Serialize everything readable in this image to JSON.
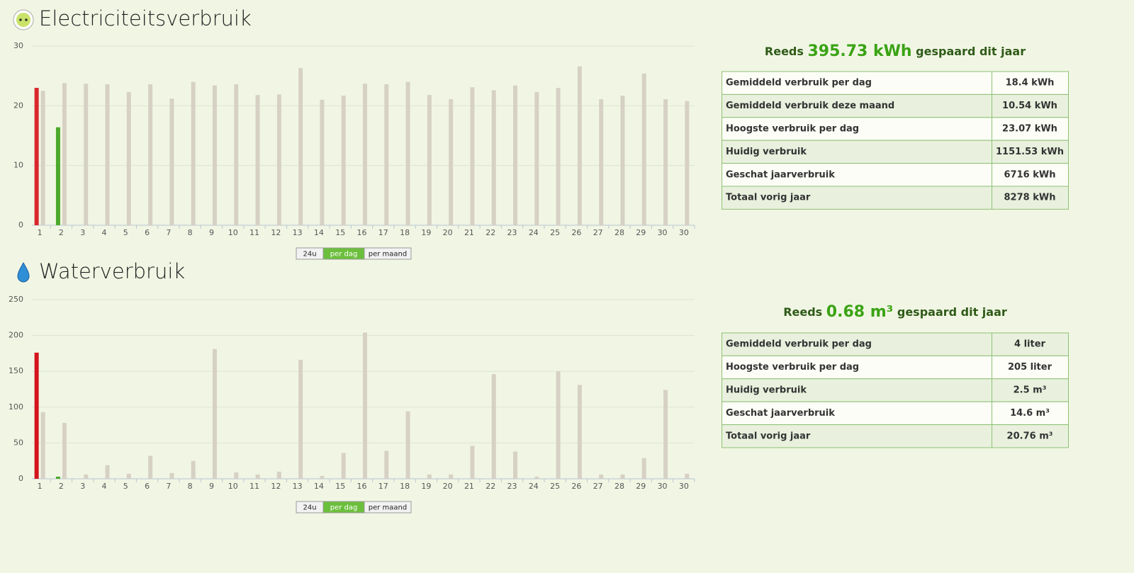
{
  "chart_data": [
    {
      "type": "bar",
      "title": "Electriciteitsverbruik",
      "categories": [
        "1",
        "2",
        "3",
        "4",
        "5",
        "6",
        "7",
        "8",
        "9",
        "10",
        "11",
        "12",
        "13",
        "14",
        "15",
        "16",
        "17",
        "18",
        "19",
        "20",
        "21",
        "22",
        "23",
        "24",
        "25",
        "26",
        "27",
        "28",
        "29",
        "30",
        "30"
      ],
      "series": [
        {
          "values": [
            23.0,
            16.4,
            null,
            null,
            null,
            null,
            null,
            null,
            null,
            null,
            null,
            null,
            null,
            null,
            null,
            null,
            null,
            null,
            null,
            null,
            null,
            null,
            null,
            null,
            null,
            null,
            null,
            null,
            null,
            null,
            null
          ],
          "colors": [
            "#d9272e",
            "#4caa2b",
            null,
            null,
            null,
            null,
            null,
            null,
            null,
            null,
            null,
            null,
            null,
            null,
            null,
            null,
            null,
            null,
            null,
            null,
            null,
            null,
            null,
            null,
            null,
            null,
            null,
            null,
            null,
            null,
            null
          ]
        },
        {
          "color": "#d6d1c4",
          "values": [
            22.5,
            23.8,
            23.7,
            23.6,
            22.3,
            23.6,
            21.2,
            24.0,
            23.4,
            23.6,
            21.8,
            21.9,
            26.3,
            21.0,
            21.7,
            23.7,
            23.6,
            24.0,
            21.8,
            21.1,
            23.1,
            22.6,
            23.4,
            22.3,
            23.0,
            26.6,
            21.1,
            21.7,
            25.4,
            21.1,
            20.8
          ]
        }
      ],
      "ylim": [
        0,
        30
      ],
      "yticks": [
        0,
        10,
        20,
        30
      ],
      "grid": true
    },
    {
      "type": "bar",
      "title": "Waterverbruik",
      "categories": [
        "1",
        "2",
        "3",
        "4",
        "5",
        "6",
        "7",
        "8",
        "9",
        "10",
        "11",
        "12",
        "13",
        "14",
        "15",
        "16",
        "17",
        "18",
        "19",
        "20",
        "21",
        "22",
        "23",
        "24",
        "25",
        "26",
        "27",
        "28",
        "29",
        "30",
        "30"
      ],
      "series": [
        {
          "values": [
            176,
            3,
            null,
            null,
            null,
            null,
            null,
            null,
            null,
            null,
            null,
            null,
            null,
            null,
            null,
            null,
            null,
            null,
            null,
            null,
            null,
            null,
            null,
            null,
            null,
            null,
            null,
            null,
            null,
            null,
            null
          ],
          "colors": [
            "#d4141c",
            "#4caa2b",
            null,
            null,
            null,
            null,
            null,
            null,
            null,
            null,
            null,
            null,
            null,
            null,
            null,
            null,
            null,
            null,
            null,
            null,
            null,
            null,
            null,
            null,
            null,
            null,
            null,
            null,
            null,
            null,
            null
          ]
        },
        {
          "color": "#d6d1c4",
          "values": [
            93,
            78,
            6,
            19,
            7,
            32,
            8,
            25,
            181,
            9,
            6,
            10,
            166,
            4,
            36,
            204,
            39,
            94,
            6,
            6,
            46,
            146,
            38,
            3,
            150,
            131,
            6,
            6,
            29,
            124,
            7
          ]
        }
      ],
      "ylim": [
        0,
        250
      ],
      "yticks": [
        0,
        50,
        100,
        150,
        200,
        250
      ],
      "grid": true
    }
  ],
  "panels": [
    {
      "summary": {
        "prefix": "Reeds",
        "amount": "395.73 kWh",
        "suffix": "gespaard dit jaar"
      },
      "table": {
        "rows": [
          [
            "Gemiddeld verbruik per dag",
            "18.4 kWh"
          ],
          [
            "Gemiddeld verbruik deze maand",
            "10.54 kWh"
          ],
          [
            "Hoogste verbruik per dag",
            "23.07 kWh"
          ],
          [
            "Huidig verbruik",
            "1151.53 kWh"
          ],
          [
            "Geschat jaarverbruik",
            "6716 kWh"
          ],
          [
            "Totaal vorig jaar",
            "8278 kWh"
          ]
        ]
      },
      "buttons": [
        "24u",
        "per dag",
        "per maand"
      ],
      "active_button": 1
    },
    {
      "summary": {
        "prefix": "Reeds",
        "amount": "0.68 m³",
        "suffix": "gespaard dit jaar"
      },
      "table": {
        "rows": [
          [
            "Gemiddeld verbruik per dag",
            "4 liter"
          ],
          [
            "Hoogste verbruik per dag",
            "205 liter"
          ],
          [
            "Huidig verbruik",
            "2.5 m³"
          ],
          [
            "Geschat jaarverbruik",
            "14.6 m³"
          ],
          [
            "Totaal vorig jaar",
            "20.76 m³"
          ]
        ]
      },
      "buttons": [
        "24u",
        "per dag",
        "per maand"
      ],
      "active_button": 1
    }
  ]
}
